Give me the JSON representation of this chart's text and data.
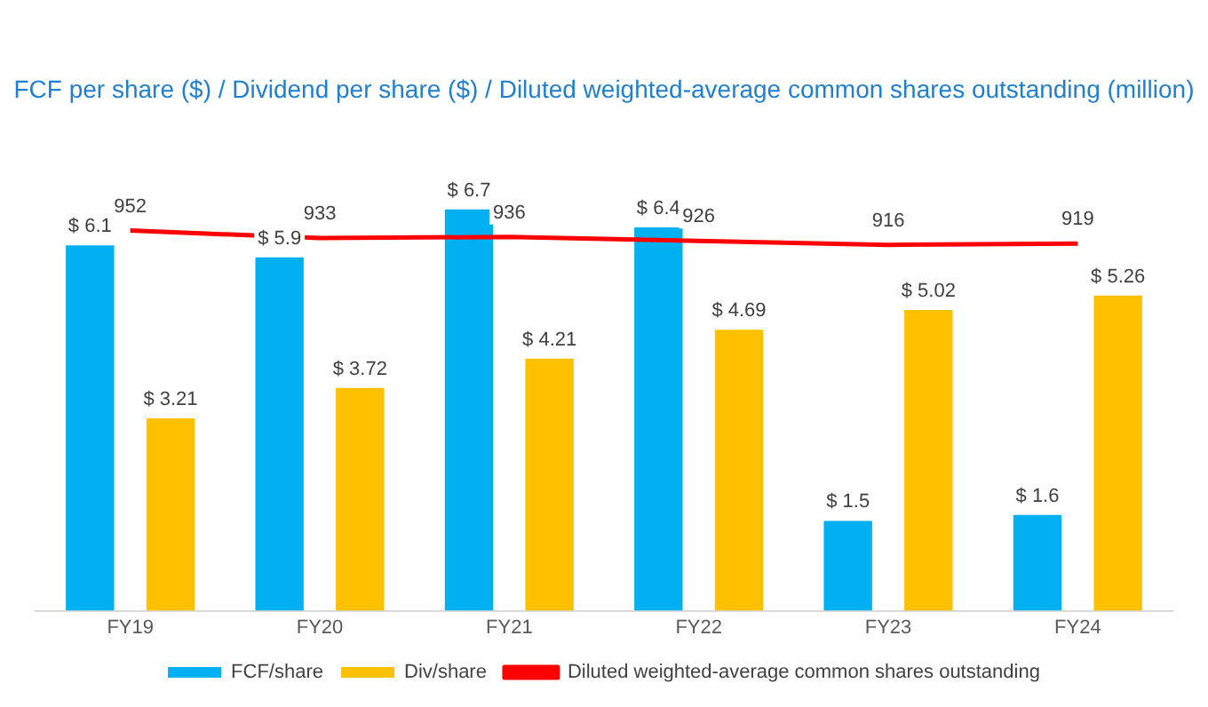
{
  "chart_data": {
    "type": "bar",
    "title": "FCF per share ($) / Dividend per share ($) / Diluted weighted-average common shares outstanding (million)",
    "categories": [
      "FY19",
      "FY20",
      "FY21",
      "FY22",
      "FY23",
      "FY24"
    ],
    "series": [
      {
        "name": "FCF/share",
        "color": "#00b0f0",
        "values": [
          6.1,
          5.9,
          6.7,
          6.4,
          1.5,
          1.6
        ],
        "value_labels": [
          "$ 6.1",
          "$ 5.9",
          "$ 6.7",
          "$ 6.4",
          "$ 1.5",
          "$ 1.6"
        ]
      },
      {
        "name": "Div/share",
        "color": "#ffc000",
        "values": [
          3.21,
          3.72,
          4.21,
          4.69,
          5.02,
          5.26
        ],
        "value_labels": [
          "$ 3.21",
          "$ 3.72",
          "$ 4.21",
          "$ 4.69",
          "$ 5.02",
          "$ 5.26"
        ]
      },
      {
        "name": "Diluted weighted-average common shares outstanding",
        "type": "line",
        "axis": "y2",
        "color": "#ff0000",
        "values": [
          952,
          933,
          936,
          926,
          916,
          919
        ],
        "value_labels": [
          "952",
          "933",
          "936",
          "926",
          "916",
          "919"
        ]
      }
    ],
    "tick_labels": "x",
    "grid": false,
    "legend": "bottom",
    "marker": "none"
  }
}
